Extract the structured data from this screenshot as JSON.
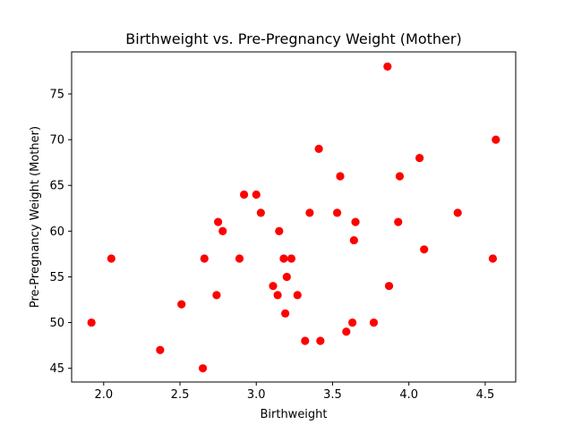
{
  "chart_data": {
    "type": "scatter",
    "title": "Birthweight vs. Pre-Pregnancy Weight (Mother)",
    "xlabel": "Birthweight",
    "ylabel": "Pre-Pregnancy Weight (Mother)",
    "xlim": [
      1.79,
      4.7
    ],
    "ylim": [
      43.5,
      79.6
    ],
    "x_ticks": [
      2.0,
      2.5,
      3.0,
      3.5,
      4.0,
      4.5
    ],
    "x_tick_labels": [
      "2.0",
      "2.5",
      "3.0",
      "3.5",
      "4.0",
      "4.5"
    ],
    "y_ticks": [
      45,
      50,
      55,
      60,
      65,
      70,
      75
    ],
    "y_tick_labels": [
      "45",
      "50",
      "55",
      "60",
      "65",
      "70",
      "75"
    ],
    "grid": false,
    "legend": "none",
    "marker_color": "#ff0000",
    "series": [
      {
        "points": [
          [
            1.92,
            50
          ],
          [
            2.05,
            57
          ],
          [
            2.37,
            47
          ],
          [
            2.51,
            52
          ],
          [
            2.65,
            45
          ],
          [
            2.66,
            57
          ],
          [
            2.74,
            53
          ],
          [
            2.75,
            61
          ],
          [
            2.78,
            60
          ],
          [
            2.89,
            57
          ],
          [
            2.92,
            64
          ],
          [
            3.0,
            64
          ],
          [
            3.03,
            62
          ],
          [
            3.11,
            54
          ],
          [
            3.14,
            53
          ],
          [
            3.15,
            60
          ],
          [
            3.18,
            57
          ],
          [
            3.19,
            51
          ],
          [
            3.2,
            55
          ],
          [
            3.23,
            57
          ],
          [
            3.27,
            53
          ],
          [
            3.32,
            48
          ],
          [
            3.35,
            62
          ],
          [
            3.41,
            69
          ],
          [
            3.42,
            48
          ],
          [
            3.53,
            62
          ],
          [
            3.55,
            66
          ],
          [
            3.59,
            49
          ],
          [
            3.63,
            50
          ],
          [
            3.64,
            59
          ],
          [
            3.65,
            61
          ],
          [
            3.77,
            50
          ],
          [
            3.86,
            78
          ],
          [
            3.87,
            54
          ],
          [
            3.93,
            61
          ],
          [
            3.94,
            66
          ],
          [
            4.07,
            68
          ],
          [
            4.1,
            58
          ],
          [
            4.32,
            62
          ],
          [
            4.55,
            57
          ],
          [
            4.57,
            70
          ]
        ]
      }
    ]
  }
}
